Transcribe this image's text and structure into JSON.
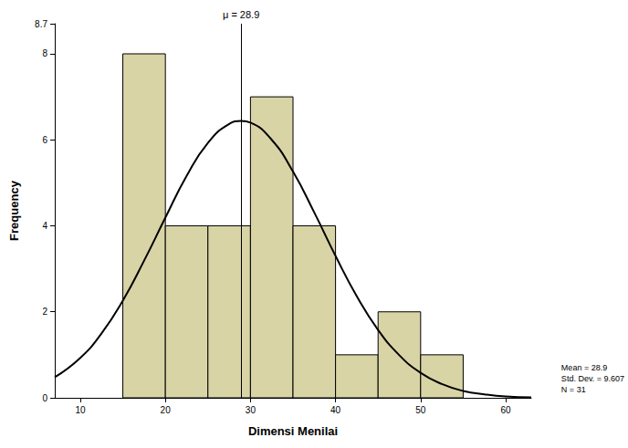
{
  "chart_data": {
    "type": "histogram",
    "x_label": "Dimensi Menilai",
    "y_label": "Frequency",
    "bins": [
      15,
      20,
      25,
      30,
      35,
      40,
      45,
      50,
      55
    ],
    "counts": [
      8,
      4,
      4,
      7,
      4,
      1,
      2,
      1
    ],
    "color": "#d8d4a6",
    "curve": {
      "x": [
        7,
        10,
        12.5,
        15,
        17.5,
        20,
        22.5,
        25,
        27.5,
        28.9,
        30,
        32.5,
        35,
        37.5,
        40,
        42.5,
        45,
        47.5,
        50,
        52.5,
        55,
        57.5,
        60,
        63
      ],
      "values": [
        0.48,
        0.93,
        1.5,
        2.26,
        3.19,
        4.19,
        5.16,
        5.93,
        6.37,
        6.44,
        6.4,
        6.0,
        5.26,
        4.31,
        3.3,
        2.36,
        1.58,
        0.99,
        0.58,
        0.32,
        0.16,
        0.08,
        0.03,
        0.01
      ],
      "color": "#000000"
    },
    "mean_line": {
      "value": 28.9,
      "label": "μ = 28.9"
    },
    "annotations": [
      "Mean = 28.9",
      "Std. Dev. = 9.607",
      "N = 31"
    ],
    "xlim": [
      7,
      63
    ],
    "xticks": [
      10,
      20,
      30,
      40,
      50,
      60
    ],
    "ylim": [
      0,
      8.7
    ],
    "yticks": [
      0,
      2,
      4,
      6,
      8
    ],
    "grid": false
  }
}
